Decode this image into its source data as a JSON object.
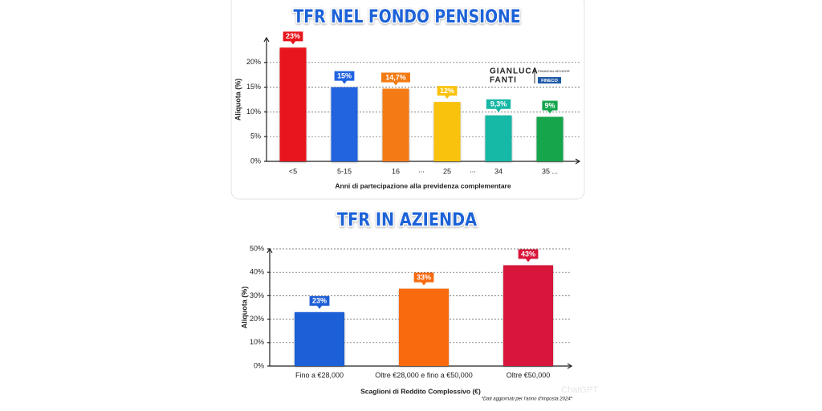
{
  "chart_data": [
    {
      "type": "bar",
      "title": "TFR NEL FONDO PENSIONE",
      "categories": [
        "<5",
        "5-15",
        "16",
        "25",
        "34",
        "35 ..."
      ],
      "gap_labels": [
        "...",
        "..."
      ],
      "values": [
        23,
        15,
        14.7,
        12,
        9.3,
        9
      ],
      "value_labels": [
        "23%",
        "15%",
        "14,7%",
        "12%",
        "9,3%",
        "9%"
      ],
      "colors": [
        "#e8141c",
        "#2063e0",
        "#f47a12",
        "#f9c20a",
        "#17b8a6",
        "#14a54c"
      ],
      "ylabel": "Aliquota (%)",
      "xlabel": "Anni di partecipazione alla previdenza complementare",
      "ylim": [
        0,
        25
      ],
      "yticks": [
        {
          "value": 0,
          "label": "0%"
        },
        {
          "value": 5,
          "label": "5%"
        },
        {
          "value": 10,
          "label": "10%"
        },
        {
          "value": 15,
          "label": "15%"
        },
        {
          "value": 20,
          "label": "20%"
        }
      ],
      "grid": true,
      "logo": {
        "name_first": "GIANLUCA",
        "name_last": "FANTI",
        "role": "FINANCIAL ADVISOR",
        "brand": "FINECO"
      }
    },
    {
      "type": "bar",
      "title": "TFR IN AZIENDA",
      "categories": [
        "Fino a €28,000",
        "Oltre €28,000 e fino a €50,000",
        "Oltre €50,000"
      ],
      "values": [
        23,
        33,
        43
      ],
      "value_labels": [
        "23%",
        "33%",
        "43%"
      ],
      "colors": [
        "#1f5fd6",
        "#f86a10",
        "#d8163a"
      ],
      "ylabel": "Aliquota (%)",
      "xlabel": "Scaglioni di Reddito Complessivo (€)",
      "ylim": [
        0,
        50
      ],
      "yticks": [
        {
          "value": 0,
          "label": "0%"
        },
        {
          "value": 10,
          "label": "10%"
        },
        {
          "value": 20,
          "label": "20%"
        },
        {
          "value": 30,
          "label": "30%"
        },
        {
          "value": 40,
          "label": "40%"
        },
        {
          "value": 50,
          "label": "50%"
        }
      ],
      "grid": true,
      "note": "*Dati aggiornati per l'anno d'imposta 2024*",
      "watermark": "ChatGPT"
    }
  ]
}
